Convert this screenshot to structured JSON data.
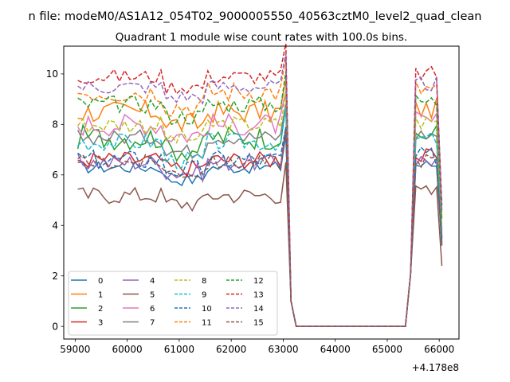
{
  "figure": {
    "suptitle": "n file: modeM0/AS1A12_054T02_9000005550_40563cztM0_level2_quad_clean"
  },
  "chart_data": {
    "type": "line",
    "title": "Quadrant 1 module wise count rates with 100.0s bins.",
    "xlabel": "",
    "ylabel": "",
    "x_offset_label": "+4.178e8",
    "x_offset": 417800000,
    "xlim": [
      58780,
      66380
    ],
    "ylim": [
      -0.5,
      11.1
    ],
    "xticks": [
      59000,
      60000,
      61000,
      62000,
      63000,
      64000,
      65000,
      66000
    ],
    "yticks": [
      0,
      2,
      4,
      6,
      8,
      10
    ],
    "grid": false,
    "legend_position": "lower-left",
    "legend_columns": 4,
    "segments": [
      {
        "x_start": 59050,
        "step": 100,
        "count": 41
      },
      {
        "x_start": 63150,
        "step": 100,
        "count": 3
      },
      {
        "x_start": 65150,
        "step": 100,
        "count": 10
      }
    ],
    "series": [
      {
        "name": "0",
        "color": "#1f77b4",
        "dash": "solid",
        "base": 6.3,
        "noise": 0.25,
        "dip_mid": 5.7,
        "end2": 3.2
      },
      {
        "name": "1",
        "color": "#ff7f0e",
        "dash": "solid",
        "base": 8.5,
        "noise": 0.45,
        "dip_mid": 7.9,
        "end2": 3.5
      },
      {
        "name": "2",
        "color": "#2ca02c",
        "dash": "solid",
        "base": 7.5,
        "noise": 0.5,
        "dip_mid": 6.9,
        "end2": 3.5
      },
      {
        "name": "3",
        "color": "#d62728",
        "dash": "solid",
        "base": 6.6,
        "noise": 0.35,
        "dip_mid": 6.2,
        "end2": 3.4
      },
      {
        "name": "4",
        "color": "#9467bd",
        "dash": "solid",
        "base": 6.5,
        "noise": 0.35,
        "dip_mid": 6.0,
        "end2": 3.3
      },
      {
        "name": "5",
        "color": "#8c564b",
        "dash": "solid",
        "base": 5.2,
        "noise": 0.35,
        "dip_mid": 4.8,
        "end2": 2.4
      },
      {
        "name": "6",
        "color": "#e377c2",
        "dash": "solid",
        "base": 8.0,
        "noise": 0.45,
        "dip_mid": 7.5,
        "end2": 3.8
      },
      {
        "name": "7",
        "color": "#7f7f7f",
        "dash": "solid",
        "base": 7.5,
        "noise": 0.3,
        "dip_mid": 6.8,
        "end2": 3.5
      },
      {
        "name": "8",
        "color": "#bcbd22",
        "dash": "dashed",
        "base": 8.0,
        "noise": 0.35,
        "dip_mid": 7.3,
        "end2": 3.9
      },
      {
        "name": "9",
        "color": "#17becf",
        "dash": "dashed",
        "base": 7.3,
        "noise": 0.35,
        "dip_mid": 6.4,
        "end2": 3.6
      },
      {
        "name": "10",
        "color": "#1f77b4",
        "dash": "dashed",
        "base": 6.6,
        "noise": 0.4,
        "dip_mid": 6.1,
        "end2": 3.3
      },
      {
        "name": "11",
        "color": "#ff7f0e",
        "dash": "dashed",
        "base": 9.3,
        "noise": 0.45,
        "dip_mid": 8.6,
        "end2": 4.3
      },
      {
        "name": "12",
        "color": "#2ca02c",
        "dash": "dashed",
        "base": 8.8,
        "noise": 0.35,
        "dip_mid": 8.2,
        "end2": 4.2
      },
      {
        "name": "13",
        "color": "#d62728",
        "dash": "dashed",
        "base": 9.9,
        "noise": 0.3,
        "dip_mid": 9.4,
        "end2": 4.8
      },
      {
        "name": "14",
        "color": "#9467bd",
        "dash": "dashed",
        "base": 9.5,
        "noise": 0.3,
        "dip_mid": 9.0,
        "end2": 4.6
      },
      {
        "name": "15",
        "color": "#8c564b",
        "dash": "dashed",
        "base": 6.5,
        "noise": 0.3,
        "dip_mid": 6.0,
        "end2": 3.2
      }
    ]
  }
}
